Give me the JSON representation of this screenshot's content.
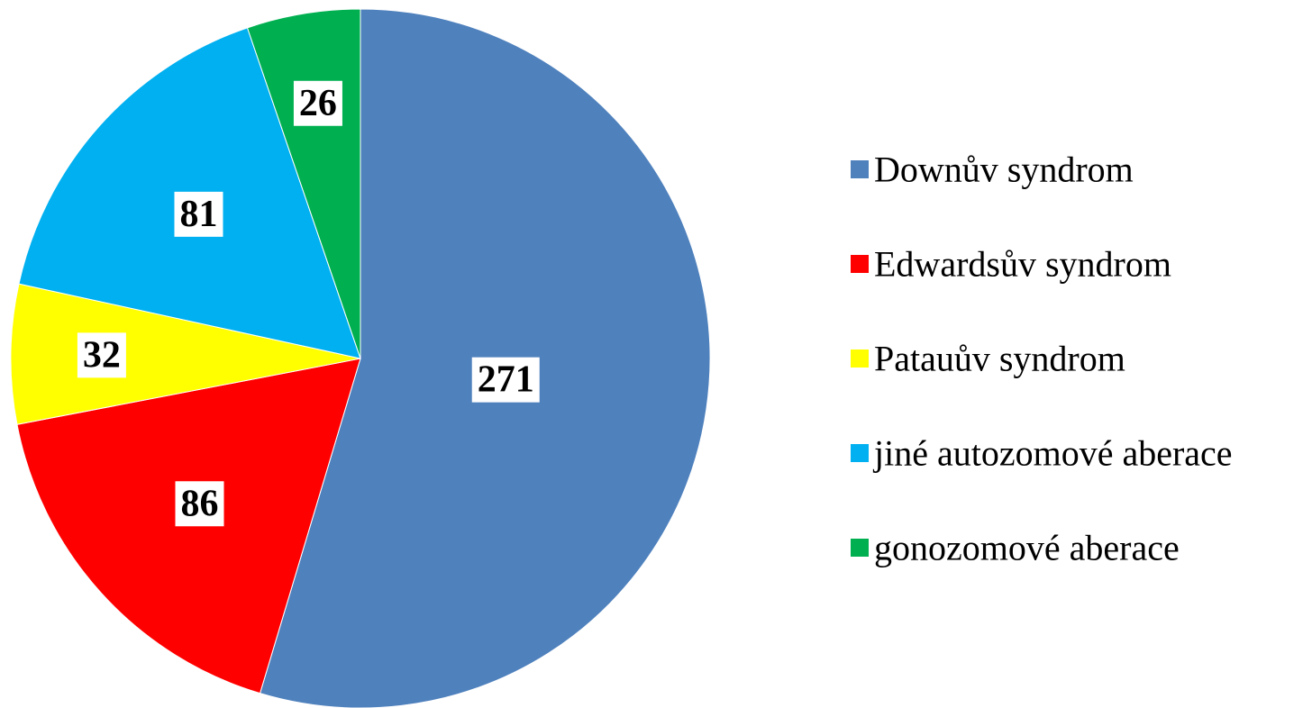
{
  "chart_data": {
    "type": "pie",
    "categories": [
      "Downův syndrom",
      "Edwardsův syndrom",
      "Patauův syndrom",
      "jiné autozomové aberace",
      "gonozomové aberace"
    ],
    "values": [
      271,
      86,
      32,
      81,
      26
    ],
    "colors": [
      "#4f81bd",
      "#ff0000",
      "#ffff00",
      "#00b0f0",
      "#00b050"
    ],
    "legend": "right"
  }
}
